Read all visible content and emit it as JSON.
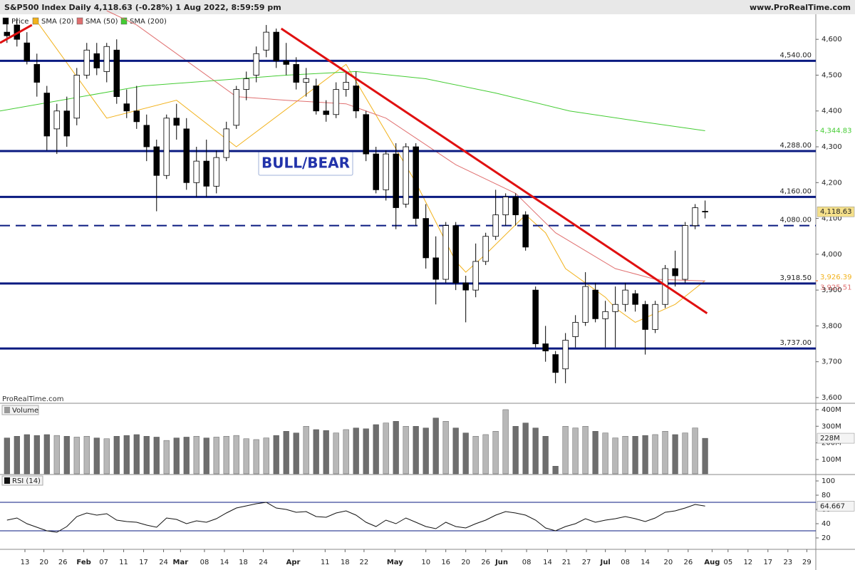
{
  "chart_data": {
    "type": "candlestick",
    "title": "S&P500 Index Daily 4,118.63 (-0.28%) 1 Aug 2022, 8:59:59 pm",
    "source": "www.ProRealTime.com",
    "watermark": "ProRealTime.com",
    "annotation": "BULL/BEAR",
    "price_name": "Price",
    "up_color": "#ffffff",
    "down_color": "#000000",
    "candles": [
      [
        4620,
        4660,
        4590,
        4610
      ],
      [
        4640,
        4660,
        4580,
        4600
      ],
      [
        4590,
        4620,
        4530,
        4540
      ],
      [
        4530,
        4560,
        4440,
        4480
      ],
      [
        4450,
        4470,
        4290,
        4330
      ],
      [
        4350,
        4420,
        4280,
        4400
      ],
      [
        4400,
        4440,
        4300,
        4330
      ],
      [
        4380,
        4520,
        4360,
        4500
      ],
      [
        4500,
        4590,
        4490,
        4570
      ],
      [
        4560,
        4590,
        4500,
        4520
      ],
      [
        4510,
        4590,
        4480,
        4580
      ],
      [
        4570,
        4600,
        4420,
        4440
      ],
      [
        4420,
        4460,
        4380,
        4400
      ],
      [
        4400,
        4470,
        4350,
        4370
      ],
      [
        4360,
        4390,
        4260,
        4300
      ],
      [
        4300,
        4320,
        4120,
        4220
      ],
      [
        4220,
        4390,
        4210,
        4380
      ],
      [
        4380,
        4420,
        4320,
        4360
      ],
      [
        4350,
        4380,
        4180,
        4200
      ],
      [
        4200,
        4300,
        4160,
        4260
      ],
      [
        4260,
        4320,
        4160,
        4190
      ],
      [
        4190,
        4290,
        4170,
        4270
      ],
      [
        4270,
        4370,
        4260,
        4350
      ],
      [
        4360,
        4470,
        4350,
        4460
      ],
      [
        4460,
        4510,
        4430,
        4490
      ],
      [
        4500,
        4580,
        4480,
        4560
      ],
      [
        4570,
        4640,
        4550,
        4620
      ],
      [
        4620,
        4630,
        4520,
        4540
      ],
      [
        4540,
        4590,
        4500,
        4530
      ],
      [
        4530,
        4550,
        4460,
        4480
      ],
      [
        4480,
        4520,
        4440,
        4490
      ],
      [
        4470,
        4490,
        4390,
        4400
      ],
      [
        4400,
        4430,
        4370,
        4390
      ],
      [
        4390,
        4480,
        4380,
        4460
      ],
      [
        4460,
        4510,
        4440,
        4480
      ],
      [
        4470,
        4510,
        4380,
        4400
      ],
      [
        4390,
        4400,
        4260,
        4280
      ],
      [
        4280,
        4300,
        4170,
        4180
      ],
      [
        4180,
        4290,
        4150,
        4280
      ],
      [
        4280,
        4310,
        4070,
        4130
      ],
      [
        4140,
        4310,
        4130,
        4300
      ],
      [
        4300,
        4310,
        4080,
        4100
      ],
      [
        4100,
        4140,
        3960,
        3990
      ],
      [
        3990,
        4050,
        3860,
        3930
      ],
      [
        3930,
        4090,
        3920,
        4080
      ],
      [
        4080,
        4090,
        3900,
        3920
      ],
      [
        3920,
        3940,
        3810,
        3900
      ],
      [
        3900,
        4030,
        3880,
        3980
      ],
      [
        3980,
        4060,
        3970,
        4050
      ],
      [
        4050,
        4180,
        4040,
        4110
      ],
      [
        4110,
        4170,
        4080,
        4160
      ],
      [
        4160,
        4170,
        4080,
        4110
      ],
      [
        4110,
        4120,
        4010,
        4020
      ],
      [
        3900,
        3910,
        3740,
        3750
      ],
      [
        3750,
        3800,
        3700,
        3730
      ],
      [
        3720,
        3730,
        3640,
        3670
      ],
      [
        3680,
        3780,
        3640,
        3760
      ],
      [
        3770,
        3830,
        3740,
        3810
      ],
      [
        3810,
        3950,
        3800,
        3910
      ],
      [
        3900,
        3920,
        3810,
        3820
      ],
      [
        3820,
        3870,
        3740,
        3840
      ],
      [
        3840,
        3910,
        3740,
        3860
      ],
      [
        3860,
        3920,
        3840,
        3900
      ],
      [
        3890,
        3900,
        3840,
        3860
      ],
      [
        3860,
        3870,
        3720,
        3790
      ],
      [
        3790,
        3870,
        3780,
        3860
      ],
      [
        3860,
        3970,
        3850,
        3960
      ],
      [
        3960,
        4010,
        3910,
        3940
      ],
      [
        3930,
        4090,
        3920,
        4080
      ],
      [
        4080,
        4140,
        4070,
        4130
      ],
      [
        4120,
        4150,
        4100,
        4118.63
      ]
    ],
    "last_label": "4,118.63",
    "last_color": "#f5e08a",
    "series": [
      {
        "name": "SMA (20)",
        "color": "#f2b21c",
        "x": [
          3,
          10,
          17,
          23,
          34,
          41,
          45,
          46,
          48,
          52,
          54,
          56,
          60,
          61,
          63,
          67,
          70
        ],
        "values": [
          4650,
          4380,
          4430,
          4300,
          4530,
          4200,
          3980,
          3950,
          4000,
          4110,
          4060,
          3960,
          3880,
          3850,
          3810,
          3860,
          3926.39
        ],
        "last_label": "3,926.39"
      },
      {
        "name": "SMA (50)",
        "color": "#e07070",
        "x": [
          10,
          13,
          17,
          23,
          28,
          34,
          38,
          45,
          51,
          55,
          61,
          65,
          70
        ],
        "values": [
          4680,
          4640,
          4560,
          4440,
          4430,
          4420,
          4380,
          4250,
          4170,
          4060,
          3960,
          3930,
          3925.51
        ],
        "last_label": "3,925.51"
      },
      {
        "name": "SMA (200)",
        "color": "#44cc33",
        "x": [
          -0.7,
          13.6,
          28,
          35,
          42,
          49,
          56.4,
          63.6,
          70
        ],
        "values": [
          4400,
          4470,
          4500,
          4510,
          4490,
          4450,
          4400,
          4370,
          4344.83
        ],
        "last_label": "4,344.83"
      }
    ],
    "trendlines": [
      {
        "color": "#e01010",
        "x": [
          -0.7,
          2.5
        ],
        "values": [
          4590,
          4640
        ]
      },
      {
        "color": "#e01010",
        "x": [
          27.5,
          70.2
        ],
        "values": [
          4630,
          3835
        ]
      }
    ],
    "levels": [
      {
        "value": 4540,
        "label": "4,540.00"
      },
      {
        "value": 4288,
        "label": "4,288.00"
      },
      {
        "value": 4160,
        "label": "4,160.00"
      },
      {
        "value": 4080,
        "label": "4,080.00",
        "dashed": true
      },
      {
        "value": 3918.5,
        "label": "3,918.50"
      },
      {
        "value": 3737,
        "label": "3,737.00"
      }
    ],
    "level_color": "#0a1a80",
    "xlim": [
      -0.7,
      81.1
    ],
    "xticks": [
      {
        "value": 1.8,
        "label": "13"
      },
      {
        "value": 3.7,
        "label": "20"
      },
      {
        "value": 5.6,
        "label": "26"
      },
      {
        "value": 7.7,
        "label": "Feb"
      },
      {
        "value": 9.7,
        "label": "07"
      },
      {
        "value": 11.7,
        "label": "11"
      },
      {
        "value": 13.7,
        "label": "17"
      },
      {
        "value": 15.7,
        "label": "24"
      },
      {
        "value": 17.4,
        "label": "Mar"
      },
      {
        "value": 19.8,
        "label": "08"
      },
      {
        "value": 21.8,
        "label": "14"
      },
      {
        "value": 23.7,
        "label": "18"
      },
      {
        "value": 25.7,
        "label": "24"
      },
      {
        "value": 28.7,
        "label": "Apr"
      },
      {
        "value": 31.9,
        "label": "11"
      },
      {
        "value": 33.9,
        "label": "18"
      },
      {
        "value": 35.8,
        "label": "22"
      },
      {
        "value": 38.9,
        "label": "May"
      },
      {
        "value": 42,
        "label": "10"
      },
      {
        "value": 44,
        "label": "16"
      },
      {
        "value": 46,
        "label": "20"
      },
      {
        "value": 48,
        "label": "26"
      },
      {
        "value": 49.6,
        "label": "Jun"
      },
      {
        "value": 52.1,
        "label": "08"
      },
      {
        "value": 54.2,
        "label": "14"
      },
      {
        "value": 56.1,
        "label": "21"
      },
      {
        "value": 58.1,
        "label": "27"
      },
      {
        "value": 60,
        "label": "Jul"
      },
      {
        "value": 62,
        "label": "08"
      },
      {
        "value": 64,
        "label": "14"
      },
      {
        "value": 66.3,
        "label": "20"
      },
      {
        "value": 68.3,
        "label": "26"
      },
      {
        "value": 70.7,
        "label": "Aug"
      },
      {
        "value": 72.3,
        "label": "05"
      },
      {
        "value": 74.3,
        "label": "12"
      },
      {
        "value": 76.3,
        "label": "17"
      },
      {
        "value": 78.3,
        "label": "23"
      },
      {
        "value": 80.2,
        "label": "29"
      }
    ],
    "ylim": [
      3586,
      4670
    ],
    "yticks": [
      {
        "value": 3600,
        "label": "3,600"
      },
      {
        "value": 3700,
        "label": "3,700"
      },
      {
        "value": 3800,
        "label": "3,800"
      },
      {
        "value": 3900,
        "label": "3,900"
      },
      {
        "value": 4000,
        "label": "4,000"
      },
      {
        "value": 4100,
        "label": "4,100"
      },
      {
        "value": 4200,
        "label": "4,200"
      },
      {
        "value": 4300,
        "label": "4,300"
      },
      {
        "value": 4400,
        "label": "4,400"
      },
      {
        "value": 4500,
        "label": "4,500"
      },
      {
        "value": 4600,
        "label": "4,600"
      }
    ],
    "volume": {
      "title": "Volume",
      "color_up": "#b8b8b8",
      "color_down": "#6e6e6e",
      "values": [
        230,
        240,
        250,
        245,
        250,
        245,
        240,
        235,
        240,
        230,
        225,
        240,
        245,
        250,
        240,
        235,
        215,
        230,
        235,
        240,
        230,
        235,
        240,
        245,
        225,
        220,
        230,
        245,
        270,
        260,
        300,
        280,
        275,
        260,
        280,
        290,
        285,
        310,
        320,
        330,
        300,
        300,
        290,
        350,
        330,
        290,
        260,
        240,
        250,
        270,
        400,
        300,
        320,
        290,
        240,
        60,
        300,
        290,
        300,
        270,
        260,
        230,
        240,
        240,
        245,
        250,
        270,
        250,
        260,
        290,
        228
      ],
      "last_label": "228M",
      "ylim": [
        14,
        434
      ],
      "yticks": [
        {
          "value": 100,
          "label": "100M"
        },
        {
          "value": 200,
          "label": "200M"
        },
        {
          "value": 300,
          "label": "300M"
        },
        {
          "value": 400,
          "label": "400M"
        }
      ]
    },
    "rsi": {
      "title": "RSI (14)",
      "color": "#111111",
      "band_color": "#0a1a80",
      "bands": [
        30,
        70
      ],
      "values": [
        45,
        48,
        40,
        35,
        30,
        28,
        36,
        50,
        55,
        52,
        54,
        45,
        43,
        42,
        38,
        35,
        48,
        46,
        40,
        44,
        42,
        47,
        55,
        62,
        65,
        68,
        70,
        62,
        60,
        56,
        57,
        50,
        49,
        55,
        58,
        52,
        42,
        36,
        45,
        40,
        48,
        42,
        36,
        33,
        42,
        36,
        34,
        40,
        45,
        52,
        57,
        55,
        52,
        45,
        34,
        30,
        36,
        40,
        47,
        42,
        45,
        47,
        50,
        47,
        43,
        48,
        56,
        58,
        62,
        67,
        64.667
      ],
      "last_label": "64.667",
      "ylim": [
        5,
        107
      ],
      "yticks": [
        20,
        40,
        60,
        80,
        100
      ]
    }
  }
}
